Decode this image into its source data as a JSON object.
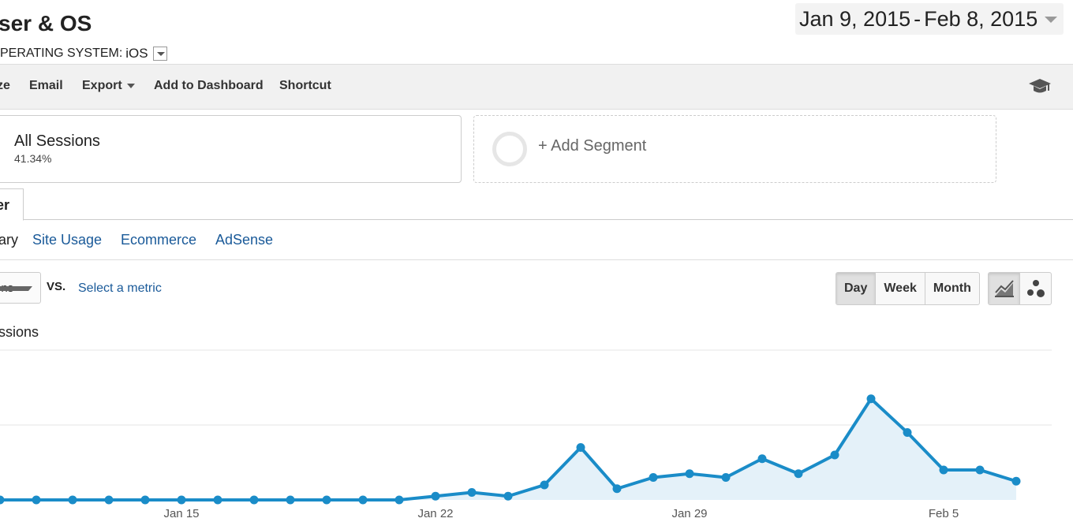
{
  "header": {
    "title": "ser & OS",
    "filter_label": "PERATING SYSTEM:",
    "filter_value": "iOS"
  },
  "date_range": {
    "start": "Jan 9, 2015",
    "separator": "-",
    "end": "Feb 8, 2015"
  },
  "toolbar": {
    "items": [
      "ze",
      "Email",
      "Export",
      "Add to Dashboard",
      "Shortcut"
    ]
  },
  "segments": {
    "active_name": "All Sessions",
    "active_pct": "41.34%",
    "add_label": "+ Add Segment"
  },
  "tabs": {
    "active": "er"
  },
  "subnav": {
    "items": [
      "ary",
      "Site Usage",
      "Ecommerce",
      "AdSense"
    ]
  },
  "metric_controls": {
    "primary_metric": "ons",
    "vs_label": "VS.",
    "select_metric": "Select a metric"
  },
  "period_buttons": [
    "Day",
    "Week",
    "Month"
  ],
  "period_active": "Day",
  "colors": {
    "series_line": "#1a8cc8",
    "series_fill": "#e4f1f9",
    "link": "#1a5a99",
    "grid": "#e5e5e5"
  },
  "icons": {
    "toolbar_right": "graduation-cap-icon",
    "chart_line": "line-chart-icon",
    "chart_motion": "motion-chart-icon"
  },
  "chart_data": {
    "type": "area",
    "series": [
      {
        "name": "Sessions",
        "values": [
          0,
          0,
          0,
          0,
          0,
          0,
          0,
          0,
          0,
          0,
          0,
          0,
          0.1,
          0.2,
          0.1,
          0.4,
          1.4,
          0.3,
          0.6,
          0.7,
          0.6,
          1.1,
          0.7,
          1.2,
          2.7,
          1.8,
          0.8,
          0.8,
          0.5
        ]
      }
    ],
    "x_tick_labels": [
      "Jan 15",
      "Jan 22",
      "Jan 29",
      "Feb 5"
    ],
    "x_tick_indices": [
      5,
      12,
      19,
      26
    ],
    "ylim": [
      0,
      4
    ],
    "grid": true
  }
}
